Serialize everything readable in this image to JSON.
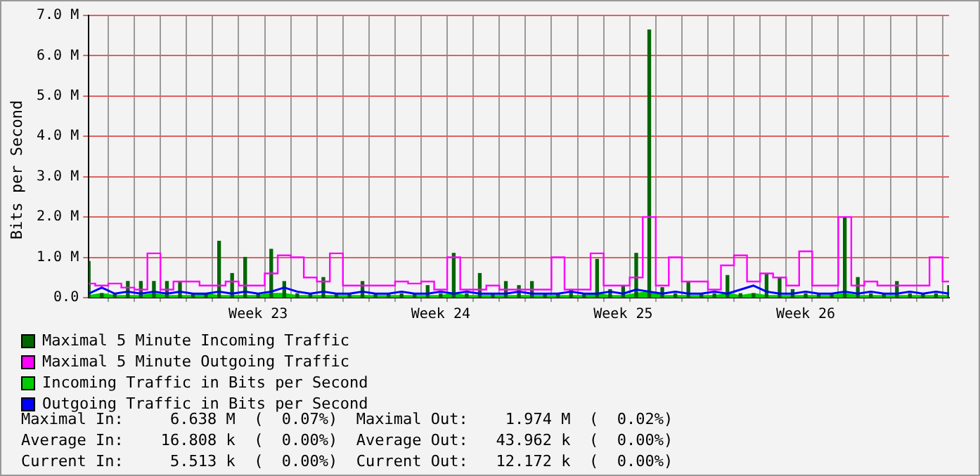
{
  "chart_data": {
    "type": "line",
    "ylabel": "Bits per Second",
    "categories": [
      null,
      null,
      null,
      null,
      null,
      null,
      null,
      null,
      null,
      null,
      null,
      null,
      null,
      "Week 23",
      null,
      null,
      null,
      null,
      null,
      null,
      null,
      null,
      null,
      null,
      null,
      null,
      null,
      "Week 24",
      null,
      null,
      null,
      null,
      null,
      null,
      null,
      null,
      null,
      null,
      null,
      null,
      null,
      "Week 25",
      null,
      null,
      null,
      null,
      null,
      null,
      null,
      null,
      null,
      null,
      null,
      null,
      null,
      "Week 26",
      null,
      null,
      null,
      null,
      null,
      null,
      null,
      null,
      null,
      null,
      null
    ],
    "ylim": [
      0,
      7
    ],
    "yticks": [
      {
        "value": 0,
        "label": "0.0"
      },
      {
        "value": 1,
        "label": "1.0 M"
      },
      {
        "value": 2,
        "label": "2.0 M"
      },
      {
        "value": 3,
        "label": "3.0 M"
      },
      {
        "value": 4,
        "label": "4.0 M"
      },
      {
        "value": 5,
        "label": "5.0 M"
      },
      {
        "value": 6,
        "label": "6.0 M"
      },
      {
        "value": 7,
        "label": "7.0 M"
      }
    ],
    "grid": true,
    "legend": "bottom left",
    "series": [
      {
        "name": "Maximal 5 Minute Incoming Traffic",
        "type": "bar",
        "color": "#006600",
        "values": [
          0.9,
          0.1,
          0.1,
          0.4,
          0.4,
          0.4,
          0.4,
          0.4,
          0.1,
          0.1,
          1.4,
          0.6,
          1.0,
          0.1,
          1.2,
          0.4,
          0.1,
          0.1,
          0.5,
          0.1,
          0.1,
          0.4,
          0.1,
          0.1,
          0.1,
          0.1,
          0.3,
          0.1,
          1.1,
          0.1,
          0.6,
          0.1,
          0.4,
          0.3,
          0.4,
          0.1,
          0.1,
          0.2,
          0.1,
          0.95,
          0.2,
          0.3,
          1.1,
          6.64,
          0.25,
          0.1,
          0.4,
          0.1,
          0.1,
          0.55,
          0.1,
          0.1,
          0.6,
          0.5,
          0.2,
          0.1,
          0.1,
          0.1,
          2.0,
          0.5,
          0.1,
          0.1,
          0.4,
          0.1,
          0.1,
          0.1,
          0.3
        ]
      },
      {
        "name": "Maximal 5 Minute Outgoing Traffic",
        "type": "step",
        "color": "#ff00ff",
        "values": [
          0.35,
          0.3,
          0.35,
          0.25,
          0.2,
          1.1,
          0.2,
          0.4,
          0.4,
          0.3,
          0.3,
          0.4,
          0.3,
          0.3,
          0.6,
          1.05,
          1.0,
          0.5,
          0.4,
          1.1,
          0.3,
          0.3,
          0.3,
          0.3,
          0.4,
          0.35,
          0.4,
          0.2,
          1.0,
          0.2,
          0.2,
          0.3,
          0.2,
          0.2,
          0.2,
          0.2,
          1.0,
          0.2,
          0.2,
          1.1,
          0.3,
          0.3,
          0.5,
          2.0,
          0.3,
          1.0,
          0.4,
          0.4,
          0.2,
          0.8,
          1.05,
          0.4,
          0.6,
          0.5,
          0.3,
          1.15,
          0.3,
          0.3,
          2.0,
          0.3,
          0.4,
          0.3,
          0.3,
          0.3,
          0.3,
          1.0,
          0.4
        ]
      },
      {
        "name": "Incoming Traffic in Bits per Second",
        "type": "area",
        "color": "#00cc00",
        "values": [
          0.05,
          0.1,
          0.05,
          0.05,
          0.05,
          0.1,
          0.05,
          0.05,
          0.05,
          0.1,
          0.05,
          0.05,
          0.05,
          0.05,
          0.1,
          0.1,
          0.05,
          0.05,
          0.05,
          0.05,
          0.05,
          0.05,
          0.05,
          0.05,
          0.05,
          0.05,
          0.05,
          0.05,
          0.1,
          0.05,
          0.05,
          0.05,
          0.05,
          0.05,
          0.05,
          0.05,
          0.05,
          0.05,
          0.05,
          0.1,
          0.05,
          0.05,
          0.1,
          0.15,
          0.05,
          0.05,
          0.05,
          0.05,
          0.05,
          0.1,
          0.05,
          0.1,
          0.05,
          0.05,
          0.05,
          0.05,
          0.05,
          0.05,
          0.1,
          0.05,
          0.05,
          0.05,
          0.05,
          0.05,
          0.05,
          0.05,
          0.05
        ]
      },
      {
        "name": "Outgoing Traffic in Bits per Second",
        "color": "#0000ff",
        "values": [
          0.1,
          0.25,
          0.1,
          0.15,
          0.1,
          0.15,
          0.1,
          0.15,
          0.1,
          0.1,
          0.15,
          0.1,
          0.15,
          0.1,
          0.15,
          0.25,
          0.15,
          0.1,
          0.15,
          0.1,
          0.1,
          0.15,
          0.1,
          0.1,
          0.15,
          0.1,
          0.1,
          0.15,
          0.1,
          0.15,
          0.1,
          0.1,
          0.1,
          0.15,
          0.1,
          0.1,
          0.1,
          0.15,
          0.1,
          0.1,
          0.15,
          0.1,
          0.2,
          0.15,
          0.1,
          0.15,
          0.1,
          0.1,
          0.15,
          0.1,
          0.2,
          0.3,
          0.15,
          0.1,
          0.1,
          0.15,
          0.1,
          0.1,
          0.15,
          0.1,
          0.15,
          0.1,
          0.1,
          0.15,
          0.1,
          0.15,
          0.1
        ]
      }
    ],
    "annotations": [
      "Maximal In:     6.638 M  (  0.07%)  Maximal Out:    1.974 M  (  0.02%)",
      "Average In:    16.808 k  (  0.00%)  Average Out:   43.962 k  (  0.00%)",
      "Current In:     5.513 k  (  0.00%)  Current Out:   12.172 k  (  0.00%)"
    ]
  }
}
